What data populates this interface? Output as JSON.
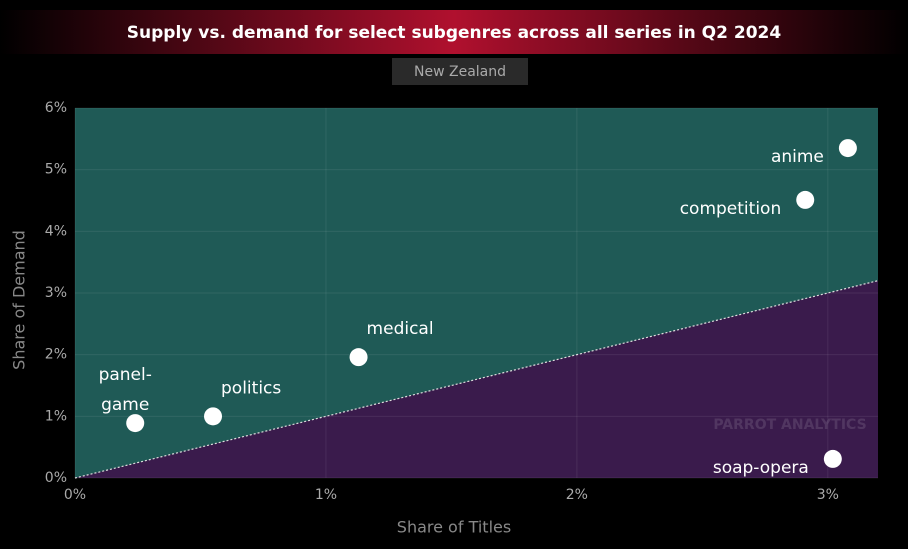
{
  "chart_data": {
    "type": "scatter",
    "title": "Supply vs. demand for select subgenres across all series in Q2 2024",
    "subtitle": "New Zealand",
    "x_label": "Share of Titles",
    "y_label": "Share of Demand",
    "watermark": "PARROT ANALYTICS",
    "categories": [
      "anime",
      "competition",
      "medical",
      "politics",
      "panel-game",
      "soap-opera"
    ],
    "x": [
      3.08,
      2.91,
      1.13,
      0.55,
      0.24,
      3.02
    ],
    "values": [
      5.35,
      4.51,
      1.96,
      1.0,
      0.89,
      0.31
    ],
    "color": "#ffffff",
    "xlim": [
      0,
      3.2
    ],
    "ylim": [
      0,
      6
    ],
    "xticks": [
      {
        "value": 0,
        "label": "0%"
      },
      {
        "value": 1,
        "label": "1%"
      },
      {
        "value": 2,
        "label": "2%"
      },
      {
        "value": 3,
        "label": "3%"
      }
    ],
    "yticks": [
      {
        "value": 0,
        "label": "0%"
      },
      {
        "value": 1,
        "label": "1%"
      },
      {
        "value": 2,
        "label": "2%"
      },
      {
        "value": 3,
        "label": "3%"
      },
      {
        "value": 4,
        "label": "4%"
      },
      {
        "value": 5,
        "label": "5%"
      },
      {
        "value": 6,
        "label": "6%"
      }
    ],
    "grid": true,
    "parity_line": true,
    "above_color": "#1f5a56",
    "below_color": "#3a1b4c"
  }
}
